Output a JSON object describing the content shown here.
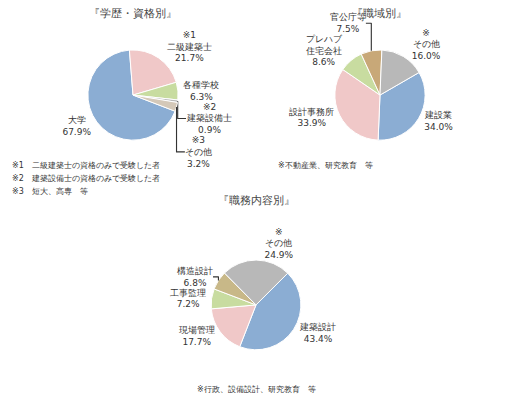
{
  "chart_data": [
    {
      "type": "pie",
      "title": "『学歴・資格別』",
      "categories": [
        "大学",
        "※1\n二級建築士",
        "各種学校",
        "※2\n建築設備士",
        "※3\nその他"
      ],
      "values": [
        67.9,
        21.7,
        6.3,
        0.9,
        3.2
      ],
      "value_labels": [
        "67.9%",
        "21.7%",
        "6.3%",
        "0.9%",
        "3.2%"
      ],
      "colors": [
        "#8badd3",
        "#f0c8c8",
        "#c8dca0",
        "#b8b8b8",
        "#d4c8b8"
      ],
      "annotations": [
        "※1　二級建築士の資格のみで受験した者",
        "※2　建築設備士の資格のみで受験した者",
        "※3　短大、高専　等"
      ]
    },
    {
      "type": "pie",
      "title": "『職域別』",
      "categories": [
        "建設業",
        "設計事務所",
        "プレハブ\n住宅会社",
        "官公庁等",
        "※\nその他"
      ],
      "values": [
        34.0,
        33.9,
        8.6,
        7.5,
        16.0
      ],
      "value_labels": [
        "34.0%",
        "33.9%",
        "8.6%",
        "7.5%",
        "16.0%"
      ],
      "colors": [
        "#8badd3",
        "#f0c8c8",
        "#c8dca0",
        "#c8a878",
        "#b8b8b8"
      ],
      "annotations": [
        "※不動産業、研究教育　等"
      ]
    },
    {
      "type": "pie",
      "title": "『職務内容別』",
      "categories": [
        "建築設計",
        "現場管理",
        "工事監理",
        "構造設計",
        "※\nその他"
      ],
      "values": [
        43.4,
        17.7,
        7.2,
        6.8,
        24.9
      ],
      "value_labels": [
        "43.4%",
        "17.7%",
        "7.2%",
        "6.8%",
        "24.9%"
      ],
      "colors": [
        "#8badd3",
        "#f0c8c8",
        "#c8dca0",
        "#c8b888",
        "#b8b8b8"
      ],
      "annotations": [
        "※行政、設備設計、研究教育　等"
      ]
    }
  ]
}
